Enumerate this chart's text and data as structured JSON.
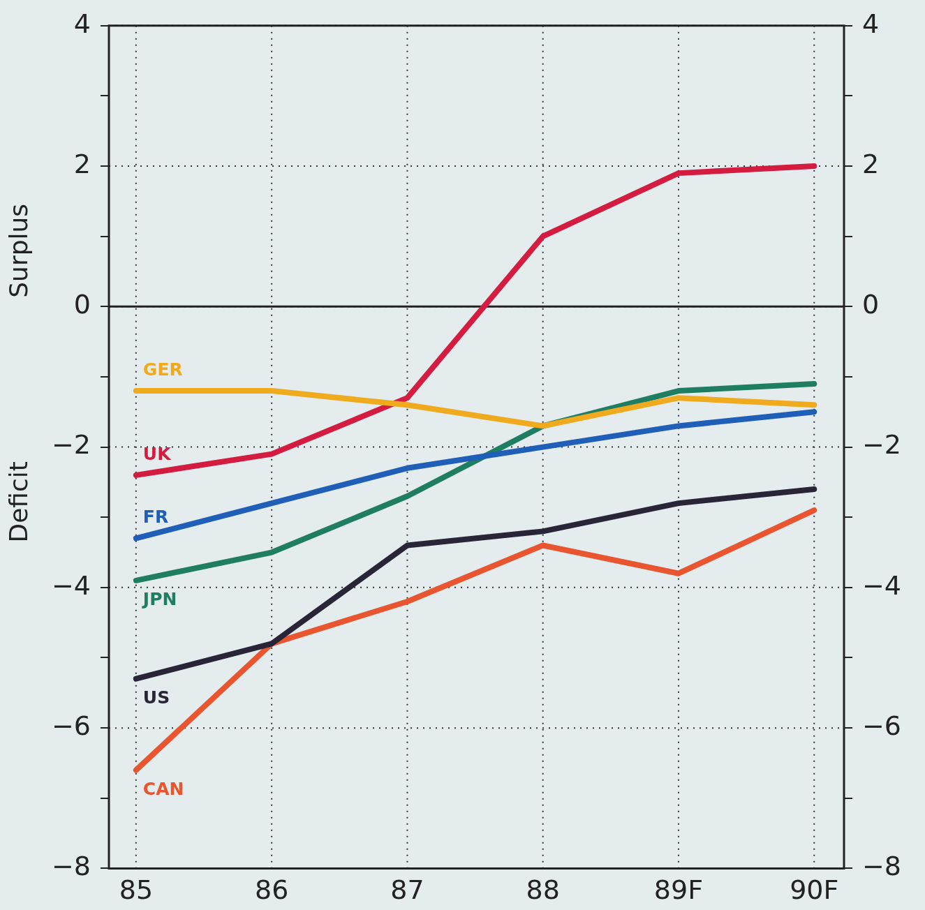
{
  "chart_data": {
    "type": "line",
    "categories": [
      "85",
      "86",
      "87",
      "88",
      "89F",
      "90F"
    ],
    "series": [
      {
        "name": "GER",
        "color": "#f0aa1e",
        "values": [
          -1.2,
          -1.2,
          -1.4,
          -1.7,
          -1.3,
          -1.4
        ]
      },
      {
        "name": "UK",
        "color": "#d41c40",
        "values": [
          -2.4,
          -2.1,
          -1.3,
          1.0,
          1.9,
          2.0
        ]
      },
      {
        "name": "FR",
        "color": "#1f5fb8",
        "values": [
          -3.3,
          -2.8,
          -2.3,
          -2.0,
          -1.7,
          -1.5
        ]
      },
      {
        "name": "JPN",
        "color": "#1f7d62",
        "values": [
          -3.9,
          -3.5,
          -2.7,
          -1.7,
          -1.2,
          -1.1
        ]
      },
      {
        "name": "US",
        "color": "#2a2438",
        "values": [
          -5.3,
          -4.8,
          -3.4,
          -3.2,
          -2.8,
          -2.6
        ]
      },
      {
        "name": "CAN",
        "color": "#e8552f",
        "values": [
          -6.6,
          -4.8,
          -4.2,
          -3.4,
          -3.8,
          -2.9
        ]
      }
    ],
    "ylim": [
      -8,
      4
    ],
    "yticks": [
      {
        "value": -8,
        "label": "−8"
      },
      {
        "value": -7,
        "label": null
      },
      {
        "value": -6,
        "label": "−6"
      },
      {
        "value": -5,
        "label": null
      },
      {
        "value": -4,
        "label": "−4"
      },
      {
        "value": -3,
        "label": null
      },
      {
        "value": -2,
        "label": "−2"
      },
      {
        "value": -1,
        "label": null
      },
      0,
      {
        "value": 1,
        "label": null
      },
      2,
      {
        "value": 3,
        "label": null
      },
      4
    ],
    "y2lim": [
      -8,
      4
    ],
    "y2ticks": [
      {
        "value": -8,
        "label": "−8"
      },
      {
        "value": -7,
        "label": null
      },
      {
        "value": -6,
        "label": "−6"
      },
      {
        "value": -5,
        "label": null
      },
      {
        "value": -4,
        "label": "−4"
      },
      {
        "value": -3,
        "label": null
      },
      {
        "value": -2,
        "label": "−2"
      },
      {
        "value": -1,
        "label": null
      },
      0,
      {
        "value": 1,
        "label": null
      },
      2,
      {
        "value": 3,
        "label": null
      },
      4
    ],
    "ref_lines": [
      {
        "axis": "y",
        "value": 0,
        "color": "#222222",
        "line_style": "solid"
      }
    ],
    "annotations": [
      "Surplus",
      "Deficit"
    ],
    "grid": true,
    "legend": false,
    "marker": "none",
    "line_style": "solid"
  }
}
